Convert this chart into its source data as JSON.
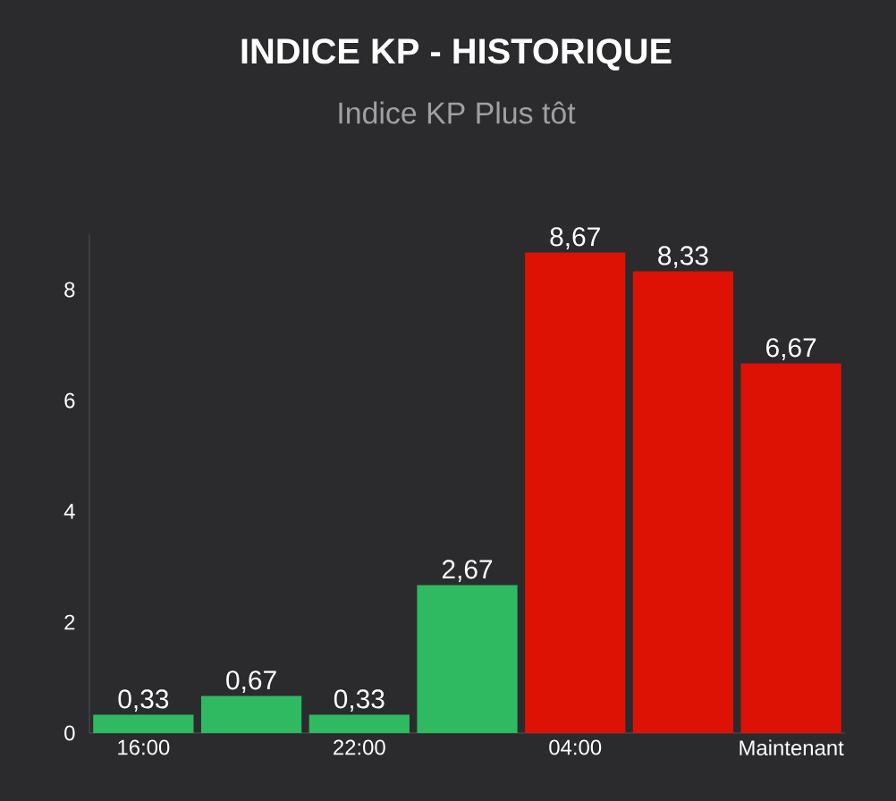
{
  "chart_data": {
    "type": "bar",
    "title": "INDICE KP - HISTORIQUE",
    "subtitle": "Indice KP Plus tôt",
    "categories": [
      "16:00",
      null,
      "22:00",
      null,
      "04:00",
      null,
      "Maintenant"
    ],
    "values": [
      0.33,
      0.67,
      0.33,
      2.67,
      8.67,
      8.33,
      6.67
    ],
    "value_labels": [
      "0,33",
      "0,67",
      "0,33",
      "2,67",
      "8,67",
      "8,33",
      "6,67"
    ],
    "colors": [
      "#2fba62",
      "#2fba62",
      "#2fba62",
      "#2fba62",
      "#dd1205",
      "#dd1205",
      "#dd1205"
    ],
    "ylim": [
      0,
      9
    ],
    "yticks": [
      0,
      2,
      4,
      6,
      8
    ]
  }
}
